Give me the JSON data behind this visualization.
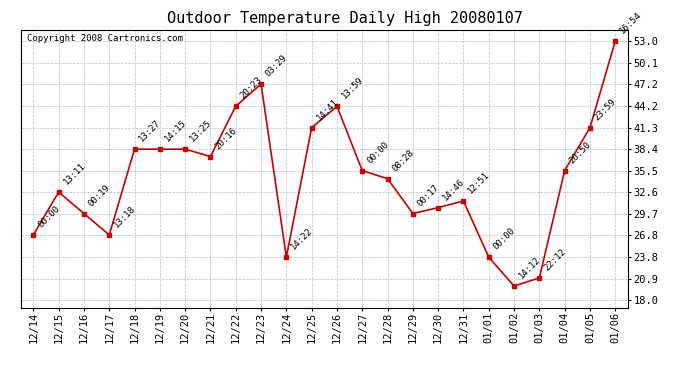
{
  "title": "Outdoor Temperature Daily High 20080107",
  "copyright": "Copyright 2008 Cartronics.com",
  "x_labels": [
    "12/14",
    "12/15",
    "12/16",
    "12/17",
    "12/18",
    "12/19",
    "12/20",
    "12/21",
    "12/22",
    "12/23",
    "12/24",
    "12/25",
    "12/26",
    "12/27",
    "12/28",
    "12/29",
    "12/30",
    "12/31",
    "01/01",
    "01/02",
    "01/03",
    "01/04",
    "01/05",
    "01/06"
  ],
  "y_values": [
    26.8,
    32.6,
    29.7,
    26.8,
    38.4,
    38.4,
    38.4,
    37.4,
    44.2,
    47.2,
    23.8,
    41.3,
    44.2,
    35.5,
    34.4,
    29.7,
    30.5,
    31.4,
    23.8,
    19.9,
    21.0,
    35.5,
    41.3,
    53.0
  ],
  "point_labels": [
    "00:00",
    "13:11",
    "00:19",
    "13:18",
    "13:27",
    "14:15",
    "13:25",
    "20:16",
    "20:23",
    "03:29",
    "14:22",
    "14:41",
    "13:59",
    "00:00",
    "08:28",
    "00:17",
    "14:46",
    "12:51",
    "00:00",
    "14:12",
    "22:12",
    "20:50",
    "23:59",
    "16:54"
  ],
  "y_ticks": [
    18.0,
    20.9,
    23.8,
    26.8,
    29.7,
    32.6,
    35.5,
    38.4,
    41.3,
    44.2,
    47.2,
    50.1,
    53.0
  ],
  "ylim": [
    17.0,
    54.5
  ],
  "xlim": [
    -0.5,
    23.5
  ],
  "line_color": "#cc0000",
  "marker_color": "#cc0000",
  "bg_color": "#ffffff",
  "grid_color": "#bbbbbb",
  "title_fontsize": 11,
  "label_fontsize": 6.5,
  "tick_fontsize": 7.5,
  "copyright_fontsize": 6.5
}
